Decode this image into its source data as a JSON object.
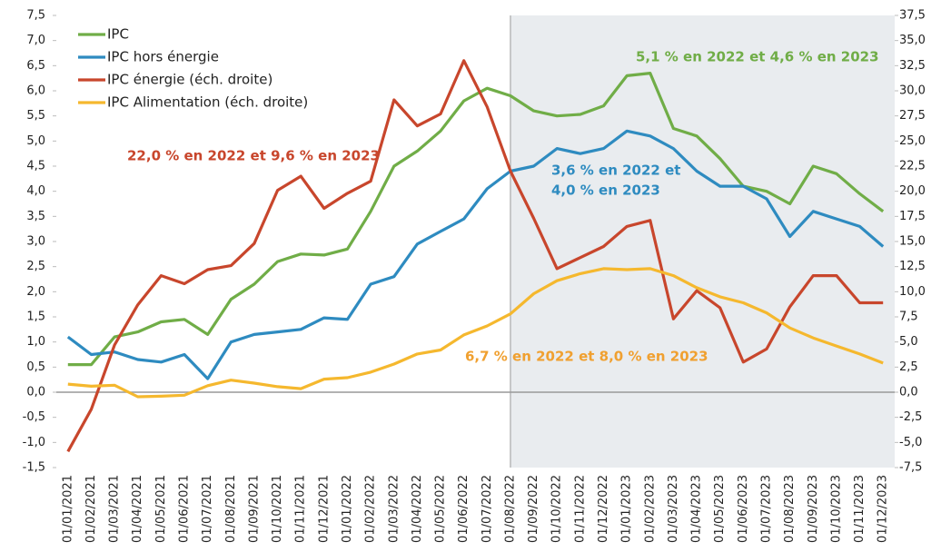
{
  "chart_data": {
    "type": "line",
    "categories": [
      "01/01/2021",
      "01/02/2021",
      "01/03/2021",
      "01/04/2021",
      "01/05/2021",
      "01/06/2021",
      "01/07/2021",
      "01/08/2021",
      "01/09/2021",
      "01/10/2021",
      "01/11/2021",
      "01/12/2021",
      "01/01/2022",
      "01/02/2022",
      "01/03/2022",
      "01/04/2022",
      "01/05/2022",
      "01/06/2022",
      "01/07/2022",
      "01/08/2022",
      "01/09/2022",
      "01/10/2022",
      "01/11/2022",
      "01/12/2022",
      "01/01/2023",
      "01/02/2023",
      "01/03/2023",
      "01/04/2023",
      "01/05/2023",
      "01/06/2023",
      "01/07/2023",
      "01/08/2023",
      "01/09/2023",
      "01/10/2023",
      "01/11/2023",
      "01/12/2023"
    ],
    "series": [
      {
        "name": "IPC",
        "color": "#70ad47",
        "values": [
          0.55,
          0.55,
          1.1,
          1.2,
          1.4,
          1.45,
          1.15,
          1.85,
          2.15,
          2.6,
          2.75,
          2.73,
          2.85,
          3.6,
          4.5,
          4.8,
          5.2,
          5.8,
          6.05,
          5.9,
          5.6,
          5.5,
          5.53,
          5.7,
          6.3,
          6.35,
          5.25,
          5.1,
          4.65,
          4.1,
          4.0,
          3.75,
          4.5,
          4.35,
          3.95,
          3.6
        ]
      },
      {
        "name": "IPC hors énergie",
        "color": "#2e8bc0",
        "values": [
          1.1,
          0.75,
          0.8,
          0.65,
          0.6,
          0.75,
          0.27,
          1.0,
          1.15,
          1.2,
          1.25,
          1.48,
          1.45,
          2.15,
          2.3,
          2.95,
          3.2,
          3.45,
          4.05,
          4.4,
          4.5,
          4.85,
          4.75,
          4.85,
          5.2,
          5.1,
          4.85,
          4.4,
          4.1,
          4.1,
          3.85,
          3.1,
          3.6,
          3.45,
          3.3,
          2.9
        ]
      },
      {
        "name": "IPC énergie (éch. droite)",
        "color": "#c8462c",
        "axis": "y2",
        "values": [
          -5.9,
          -1.7,
          4.7,
          8.7,
          11.6,
          10.8,
          12.2,
          12.6,
          14.8,
          20.1,
          21.5,
          18.3,
          19.8,
          21.0,
          29.1,
          26.5,
          27.7,
          33.0,
          28.4,
          22.0,
          17.3,
          12.3,
          13.4,
          14.5,
          16.5,
          17.1,
          7.3,
          10.1,
          8.4,
          3.0,
          4.3,
          8.5,
          11.6,
          11.6,
          8.9,
          8.9
        ]
      },
      {
        "name": "IPC Alimentation (éch. droite)",
        "color": "#f5b82e",
        "axis": "y2",
        "values": [
          0.8,
          0.6,
          0.7,
          -0.45,
          -0.4,
          -0.3,
          0.65,
          1.2,
          0.9,
          0.55,
          0.35,
          1.3,
          1.45,
          2.0,
          2.8,
          3.8,
          4.2,
          5.7,
          6.6,
          7.8,
          9.8,
          11.1,
          11.8,
          12.3,
          12.2,
          12.3,
          11.6,
          10.4,
          9.5,
          8.9,
          7.9,
          6.4,
          5.4,
          4.6,
          3.8,
          2.9
        ]
      }
    ],
    "annotations": [
      {
        "text": [
          "22,0 % en 2022 et 9,6 % en 2023"
        ],
        "color": "#c8462c"
      },
      {
        "text": [
          "3,6 % en 2022 et",
          "4,0 % en 2023"
        ],
        "color": "#2e8bc0"
      },
      {
        "text": [
          "5,1 % en 2022 et 4,6 % en 2023"
        ],
        "color": "#70ad47"
      },
      {
        "text": [
          "6,7 % en 2022 et 8,0 % en 2023"
        ],
        "color": "#f0a030"
      }
    ],
    "ylim": [
      -1.5,
      7.5
    ],
    "yticks": [
      {
        "value": -1.5,
        "label": "-1,5"
      },
      {
        "value": -1,
        "label": "-1,0"
      },
      {
        "value": -0.5,
        "label": "-0,5"
      },
      {
        "value": 0,
        "label": "0,0"
      },
      {
        "value": 0.5,
        "label": "0,5"
      },
      {
        "value": 1,
        "label": "1,0"
      },
      {
        "value": 1.5,
        "label": "1,5"
      },
      {
        "value": 2,
        "label": "2,0"
      },
      {
        "value": 2.5,
        "label": "2,5"
      },
      {
        "value": 3,
        "label": "3,0"
      },
      {
        "value": 3.5,
        "label": "3,5"
      },
      {
        "value": 4,
        "label": "4,0"
      },
      {
        "value": 4.5,
        "label": "4,5"
      },
      {
        "value": 5,
        "label": "5,0"
      },
      {
        "value": 5.5,
        "label": "5,5"
      },
      {
        "value": 6,
        "label": "6,0"
      },
      {
        "value": 6.5,
        "label": "6,5"
      },
      {
        "value": 7,
        "label": "7,0"
      },
      {
        "value": 7.5,
        "label": "7,5"
      }
    ],
    "y2lim": [
      -7.5,
      37.5
    ],
    "y2ticks": [
      {
        "value": -7.5,
        "label": "-7,5"
      },
      {
        "value": -5,
        "label": "-5,0"
      },
      {
        "value": -2.5,
        "label": "-2,5"
      },
      {
        "value": 0,
        "label": "0,0"
      },
      {
        "value": 2.5,
        "label": "2,5"
      },
      {
        "value": 5,
        "label": "5,0"
      },
      {
        "value": 7.5,
        "label": "7,5"
      },
      {
        "value": 10,
        "label": "10,0"
      },
      {
        "value": 12.5,
        "label": "12,5"
      },
      {
        "value": 15,
        "label": "15,0"
      },
      {
        "value": 17.5,
        "label": "17,5"
      },
      {
        "value": 20,
        "label": "20,0"
      },
      {
        "value": 22.5,
        "label": "22,5"
      },
      {
        "value": 25,
        "label": "25,0"
      },
      {
        "value": 27.5,
        "label": "27,5"
      },
      {
        "value": 30,
        "label": "30,0"
      },
      {
        "value": 32.5,
        "label": "32,5"
      },
      {
        "value": 35,
        "label": "35,0"
      },
      {
        "value": 37.5,
        "label": "37,5"
      }
    ],
    "legend": "upper left"
  }
}
